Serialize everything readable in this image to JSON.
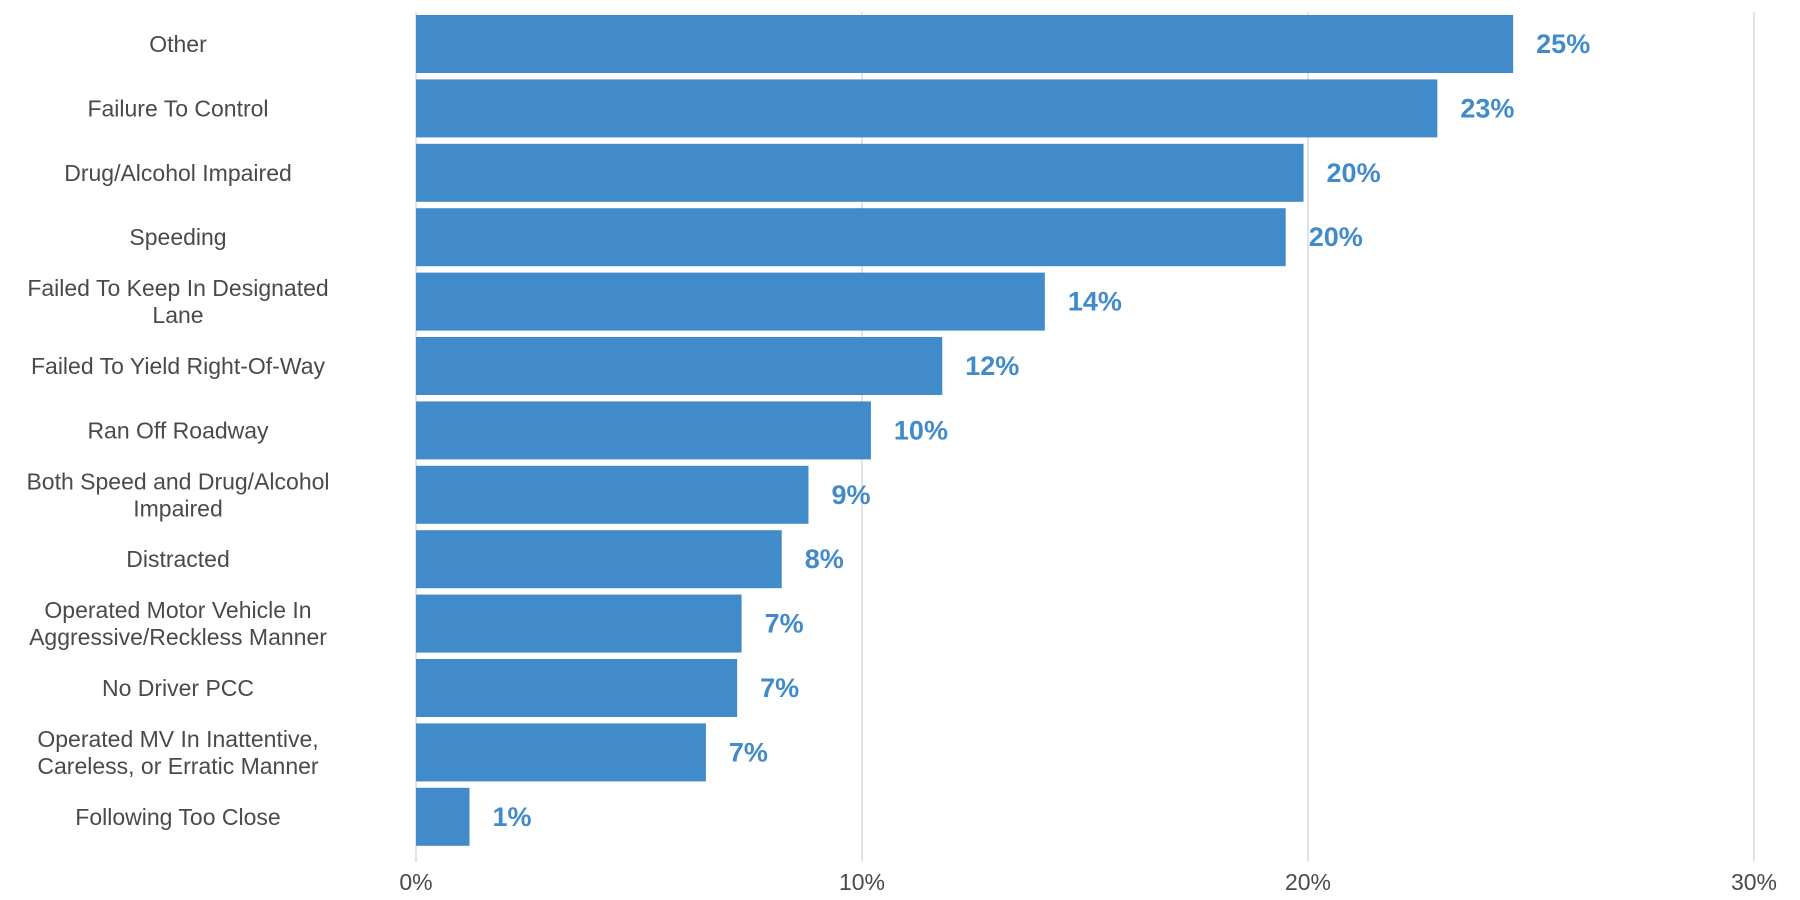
{
  "chart_data": {
    "type": "bar",
    "orientation": "horizontal",
    "title": "",
    "xlabel": "",
    "ylabel": "",
    "categories": [
      [
        "Other"
      ],
      [
        "Failure To Control"
      ],
      [
        "Drug/Alcohol Impaired"
      ],
      [
        "Speeding"
      ],
      [
        "Failed To Keep In Designated",
        "Lane"
      ],
      [
        "Failed To Yield Right-Of-Way"
      ],
      [
        "Ran Off Roadway"
      ],
      [
        "Both Speed and Drug/Alcohol",
        "Impaired"
      ],
      [
        "Distracted"
      ],
      [
        "Operated Motor Vehicle In",
        "Aggressive/Reckless Manner"
      ],
      [
        "No Driver PCC"
      ],
      [
        "Operated MV In Inattentive,",
        "Careless, or Erratic Manner"
      ],
      [
        "Following Too Close"
      ]
    ],
    "values": [
      24.6,
      22.9,
      19.9,
      19.5,
      14.1,
      11.8,
      10.2,
      8.8,
      8.2,
      7.3,
      7.2,
      6.5,
      1.2
    ],
    "value_labels": [
      "25%",
      "23%",
      "20%",
      "20%",
      "14%",
      "12%",
      "10%",
      "9%",
      "8%",
      "7%",
      "7%",
      "7%",
      "1%"
    ],
    "xlim": [
      0,
      30
    ],
    "xticks": [
      0,
      10,
      20,
      30
    ],
    "xtick_labels": [
      "0%",
      "10%",
      "20%",
      "30%"
    ],
    "grid": "vertical",
    "legend": "none",
    "bar_color": "#428bca",
    "label_color": "#428bca",
    "text_color": "#4a4a4a",
    "grid_color": "#e3e3e3"
  }
}
